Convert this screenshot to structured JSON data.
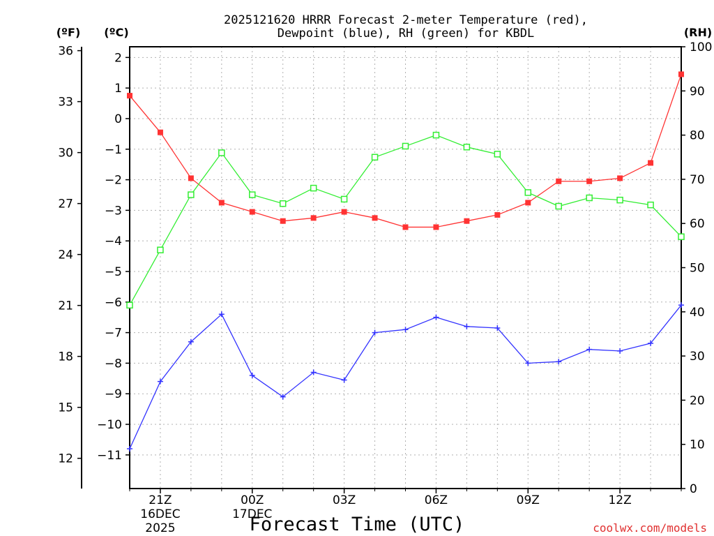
{
  "chart_data": {
    "type": "line",
    "title_line1": "2025121620 HRRR Forecast 2-meter Temperature (red),",
    "title_line2": "Dewpoint (blue), RH (green) for KBDL",
    "xlabel": "Forecast Time (UTC)",
    "credit": "coolwx.com/models",
    "units": {
      "fahrenheit": "(ºF)",
      "celsius": "(ºC)",
      "rh": "(RH)"
    },
    "x_hours": [
      20,
      21,
      22,
      23,
      24,
      25,
      26,
      27,
      28,
      29,
      30,
      31,
      32,
      33,
      34,
      35,
      36,
      37,
      38
    ],
    "x_range": [
      20,
      38
    ],
    "x_ticks": [
      {
        "hour": 21,
        "lines": [
          "21Z",
          "16DEC",
          "2025"
        ]
      },
      {
        "hour": 24,
        "lines": [
          "00Z",
          "17DEC"
        ]
      },
      {
        "hour": 27,
        "lines": [
          "03Z"
        ]
      },
      {
        "hour": 30,
        "lines": [
          "06Z"
        ]
      },
      {
        "hour": 33,
        "lines": [
          "09Z"
        ]
      },
      {
        "hour": 36,
        "lines": [
          "12Z"
        ]
      }
    ],
    "celsius_axis": {
      "range": [
        -12.1,
        2.35
      ],
      "ticks": [
        2,
        1,
        0,
        -1,
        -2,
        -3,
        -4,
        -5,
        -6,
        -7,
        -8,
        -9,
        -10,
        -11
      ],
      "labels": [
        "2",
        "1",
        "0",
        "−1",
        "−2",
        "−3",
        "−4",
        "−5",
        "−6",
        "−7",
        "−8",
        "−9",
        "−10",
        "−11"
      ]
    },
    "fahrenheit_axis": {
      "ticks": [
        36,
        33,
        30,
        27,
        24,
        21,
        18,
        15,
        12
      ],
      "labels": [
        "36",
        "33",
        "30",
        "27",
        "24",
        "21",
        "18",
        "15",
        "12"
      ]
    },
    "rh_axis": {
      "range": [
        0,
        100
      ],
      "ticks": [
        100,
        90,
        80,
        70,
        60,
        50,
        40,
        30,
        20,
        10,
        0
      ],
      "labels": [
        "100",
        "90",
        "80",
        "70",
        "60",
        "50",
        "40",
        "30",
        "20",
        "10",
        "0"
      ]
    },
    "series": [
      {
        "name": "Temperature",
        "axis": "celsius",
        "color": "#ff3333",
        "marker": "filled-square",
        "values": [
          0.75,
          -0.45,
          -1.95,
          -2.75,
          -3.05,
          -3.35,
          -3.25,
          -3.05,
          -3.25,
          -3.55,
          -3.55,
          -3.35,
          -3.15,
          -2.75,
          -2.05,
          -2.05,
          -1.95,
          -1.45,
          1.45
        ]
      },
      {
        "name": "Dewpoint",
        "axis": "celsius",
        "color": "#3333ff",
        "marker": "plus",
        "values": [
          -10.8,
          -8.6,
          -7.3,
          -6.4,
          -8.4,
          -9.1,
          -8.3,
          -8.55,
          -7.0,
          -6.9,
          -6.5,
          -6.8,
          -6.85,
          -8.0,
          -7.95,
          -7.55,
          -7.6,
          -7.35,
          -6.1
        ]
      },
      {
        "name": "RH",
        "axis": "rh",
        "color": "#33ee33",
        "marker": "open-square",
        "values": [
          41.5,
          54,
          66.5,
          76,
          66.5,
          64.5,
          68,
          65.5,
          75,
          77.5,
          80,
          77.3,
          75.7,
          67,
          63.9,
          65.8,
          65.3,
          64.2,
          57
        ]
      }
    ]
  }
}
